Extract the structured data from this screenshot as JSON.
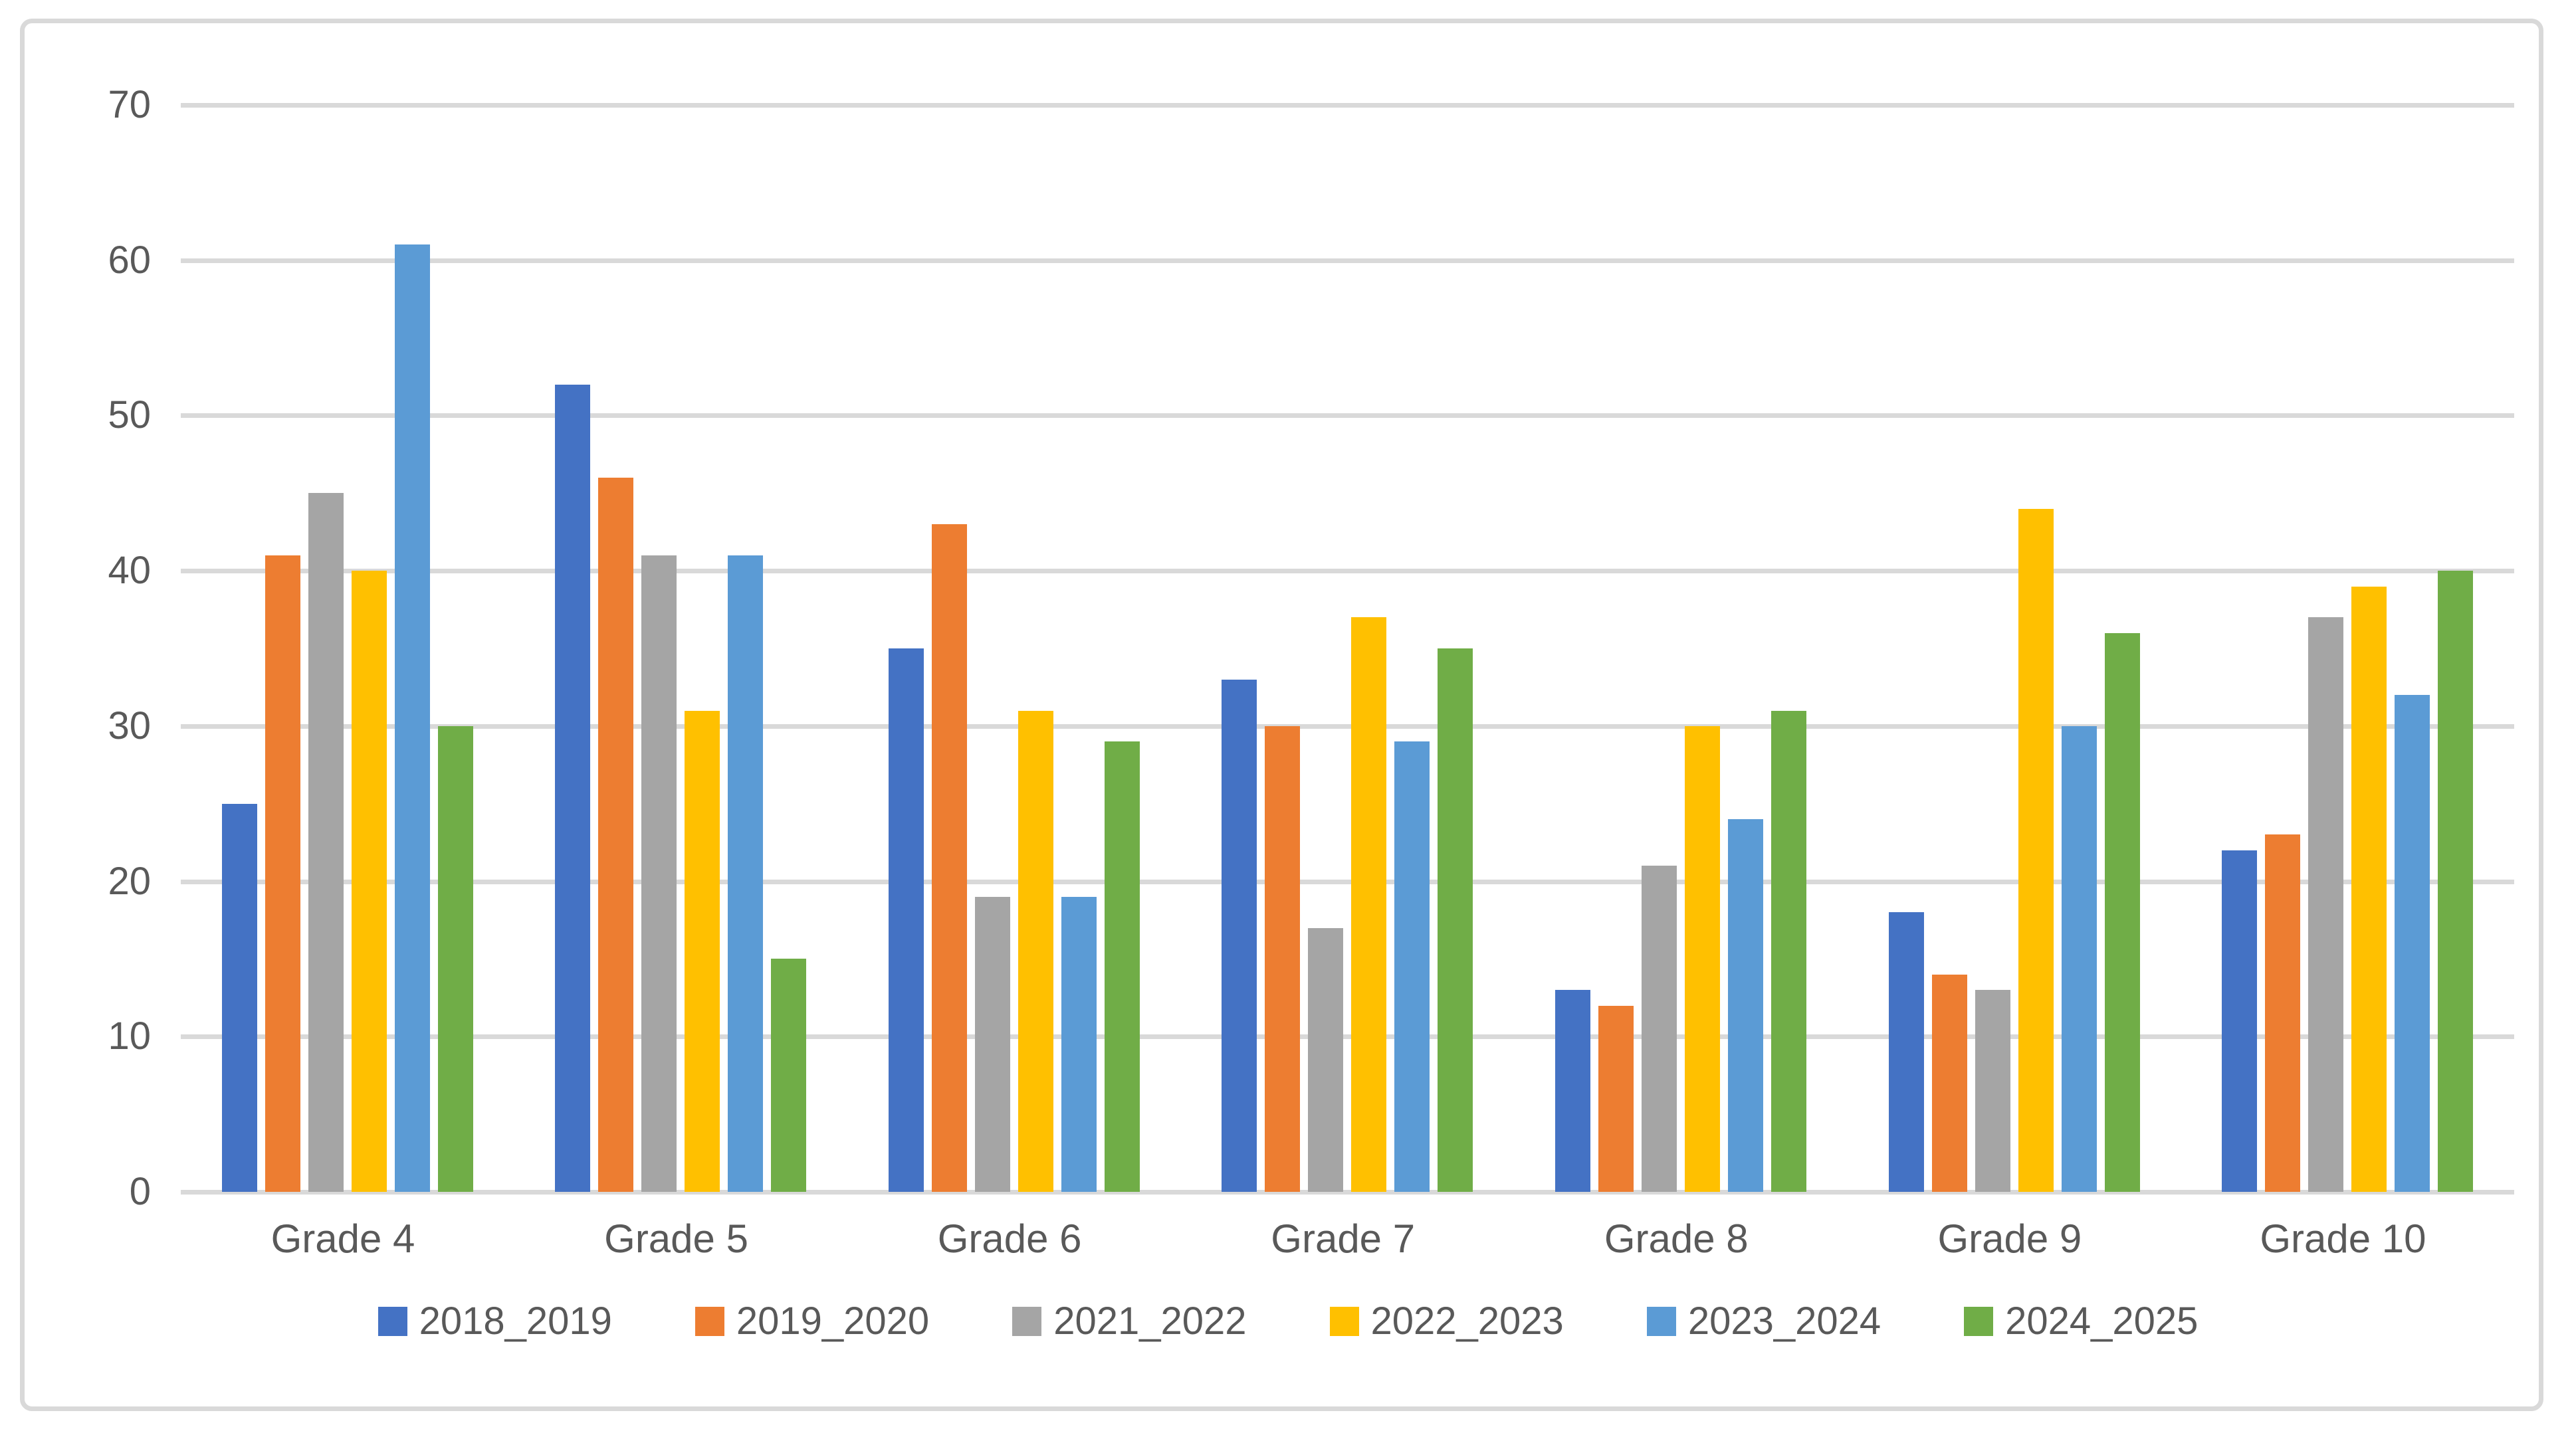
{
  "chart_data": {
    "type": "bar",
    "title": "",
    "categories": [
      "Grade 4",
      "Grade 5",
      "Grade 6",
      "Grade 7",
      "Grade 8",
      "Grade 9",
      "Grade 10"
    ],
    "series": [
      {
        "name": "2018_2019",
        "color": "#4472C4",
        "values": [
          25,
          52,
          35,
          33,
          13,
          18,
          22
        ]
      },
      {
        "name": "2019_2020",
        "color": "#ED7D31",
        "values": [
          41,
          46,
          43,
          30,
          12,
          14,
          23
        ]
      },
      {
        "name": "2021_2022",
        "color": "#A5A5A5",
        "values": [
          45,
          41,
          19,
          17,
          21,
          13,
          37
        ]
      },
      {
        "name": "2022_2023",
        "color": "#FFC000",
        "values": [
          40,
          31,
          31,
          37,
          30,
          44,
          39
        ]
      },
      {
        "name": "2023_2024",
        "color": "#5B9BD5",
        "values": [
          61,
          41,
          19,
          29,
          24,
          30,
          32
        ]
      },
      {
        "name": "2024_2025",
        "color": "#70AD47",
        "values": [
          30,
          15,
          29,
          35,
          31,
          36,
          40
        ]
      }
    ],
    "xlabel": "",
    "ylabel": "",
    "ylim": [
      0,
      70
    ],
    "yticks": [
      0,
      10,
      20,
      30,
      40,
      50,
      60,
      70
    ],
    "grid": true,
    "legend_position": "bottom"
  },
  "styles": {
    "background": "#FFFFFF",
    "frame_border_color": "#D9D9D9",
    "gridline_color": "#D9D9D9",
    "axis_text_color": "#595959"
  }
}
